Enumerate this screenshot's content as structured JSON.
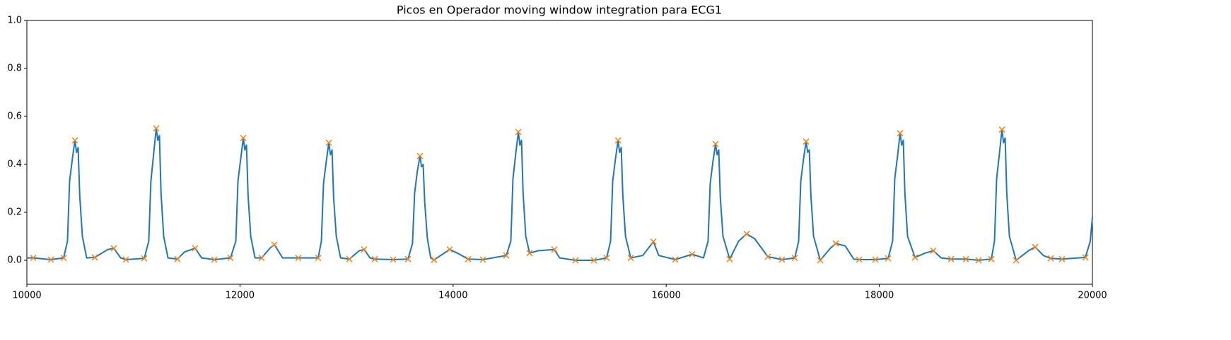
{
  "chart_data": {
    "type": "line",
    "title": "Picos en Operador moving window integration para ECG1",
    "xlim": [
      10000,
      20000
    ],
    "xticks": [
      10000,
      12000,
      14000,
      16000,
      18000,
      20000
    ],
    "ylim": [
      -0.1,
      1.0
    ],
    "yticks": [
      {
        "value": 0,
        "label": "0.0"
      },
      {
        "value": 0.2,
        "label": "0.2"
      },
      {
        "value": 0.4,
        "label": "0.4"
      },
      {
        "value": 0.6,
        "label": "0.6"
      },
      {
        "value": 0.8,
        "label": "0.8"
      },
      {
        "value": 1.0,
        "label": "1.0"
      }
    ],
    "series": [
      {
        "type": "line",
        "color": "#1f77b4",
        "x": [
          10000,
          10060,
          10226,
          10345,
          10381,
          10401,
          10426,
          10451,
          10466,
          10481,
          10496,
          10521,
          10561,
          10637,
          10760,
          10816,
          10880,
          10929,
          11102,
          11144,
          11164,
          11189,
          11214,
          11229,
          11244,
          11259,
          11284,
          11324,
          11413,
          11480,
          11579,
          11640,
          11759,
          11911,
          11961,
          11981,
          12006,
          12031,
          12046,
          12061,
          12076,
          12101,
          12141,
          12203,
          12280,
          12323,
          12400,
          12548,
          12734,
          12764,
          12784,
          12809,
          12834,
          12849,
          12864,
          12879,
          12904,
          12944,
          13026,
          13120,
          13165,
          13220,
          13265,
          13437,
          13577,
          13619,
          13639,
          13664,
          13689,
          13704,
          13719,
          13734,
          13759,
          13790,
          13822,
          13968,
          14040,
          14141,
          14280,
          14499,
          14542,
          14562,
          14587,
          14612,
          14627,
          14642,
          14657,
          14682,
          14718,
          14800,
          14950,
          15000,
          15149,
          15322,
          15441,
          15478,
          15498,
          15523,
          15548,
          15563,
          15578,
          15593,
          15618,
          15667,
          15780,
          15880,
          15930,
          16085,
          16244,
          16350,
          16393,
          16413,
          16438,
          16463,
          16478,
          16493,
          16508,
          16533,
          16596,
          16680,
          16755,
          16830,
          16954,
          17087,
          17207,
          17243,
          17263,
          17288,
          17313,
          17328,
          17343,
          17358,
          17383,
          17446,
          17540,
          17592,
          17680,
          17760,
          17811,
          17963,
          18083,
          18125,
          18145,
          18170,
          18195,
          18210,
          18225,
          18240,
          18265,
          18335,
          18430,
          18507,
          18580,
          18673,
          18813,
          18932,
          19051,
          19081,
          19101,
          19126,
          19151,
          19166,
          19181,
          19196,
          19221,
          19284,
          19400,
          19463,
          19540,
          19609,
          19715,
          19934,
          19980,
          20000
        ],
        "values": [
          0.01,
          0.01,
          0.003,
          0.01,
          0.08,
          0.33,
          0.42,
          0.5,
          0.45,
          0.47,
          0.27,
          0.1,
          0.01,
          0.012,
          0.045,
          0.05,
          0.01,
          0.003,
          0.008,
          0.08,
          0.33,
          0.44,
          0.55,
          0.5,
          0.52,
          0.28,
          0.1,
          0.01,
          0.005,
          0.035,
          0.05,
          0.01,
          0.003,
          0.01,
          0.08,
          0.33,
          0.42,
          0.51,
          0.46,
          0.48,
          0.27,
          0.1,
          0.01,
          0.01,
          0.05,
          0.065,
          0.01,
          0.01,
          0.01,
          0.08,
          0.32,
          0.41,
          0.49,
          0.44,
          0.46,
          0.26,
          0.1,
          0.01,
          0.005,
          0.04,
          0.045,
          0.01,
          0.005,
          0.003,
          0.005,
          0.07,
          0.28,
          0.37,
          0.435,
          0.39,
          0.4,
          0.24,
          0.09,
          0.01,
          0.002,
          0.045,
          0.03,
          0.005,
          0.003,
          0.02,
          0.08,
          0.34,
          0.44,
          0.535,
          0.48,
          0.5,
          0.28,
          0.1,
          0.03,
          0.04,
          0.045,
          0.01,
          0.0,
          0.0,
          0.01,
          0.08,
          0.33,
          0.42,
          0.5,
          0.45,
          0.47,
          0.27,
          0.1,
          0.01,
          0.02,
          0.078,
          0.02,
          0.003,
          0.025,
          0.01,
          0.08,
          0.32,
          0.41,
          0.485,
          0.44,
          0.46,
          0.26,
          0.1,
          0.005,
          0.08,
          0.11,
          0.09,
          0.015,
          0.003,
          0.01,
          0.08,
          0.33,
          0.42,
          0.495,
          0.45,
          0.46,
          0.27,
          0.1,
          0.0,
          0.05,
          0.07,
          0.06,
          0.005,
          0.003,
          0.003,
          0.008,
          0.08,
          0.34,
          0.43,
          0.53,
          0.48,
          0.5,
          0.28,
          0.1,
          0.012,
          0.03,
          0.04,
          0.01,
          0.005,
          0.005,
          0.0,
          0.005,
          0.08,
          0.34,
          0.44,
          0.545,
          0.49,
          0.51,
          0.28,
          0.1,
          0.0,
          0.04,
          0.055,
          0.02,
          0.008,
          0.005,
          0.012,
          0.08,
          0.18
        ]
      },
      {
        "type": "scatter",
        "marker": "x",
        "color": "#ff7f0e",
        "x": [
          10060,
          10226,
          10345,
          10451,
          10637,
          10816,
          10929,
          11102,
          11214,
          11413,
          11579,
          11759,
          11911,
          12031,
          12203,
          12323,
          12548,
          12734,
          12834,
          13026,
          13165,
          13265,
          13437,
          13577,
          13689,
          13822,
          13968,
          14141,
          14280,
          14499,
          14612,
          14718,
          14950,
          15149,
          15322,
          15441,
          15548,
          15667,
          15880,
          16085,
          16244,
          16463,
          16596,
          16755,
          16954,
          17087,
          17207,
          17313,
          17446,
          17592,
          17811,
          17963,
          18083,
          18195,
          18335,
          18507,
          18673,
          18813,
          18932,
          19051,
          19151,
          19284,
          19463,
          19609,
          19715,
          19934
        ],
        "values": [
          0.01,
          0.003,
          0.01,
          0.5,
          0.012,
          0.05,
          0.003,
          0.008,
          0.55,
          0.005,
          0.05,
          0.003,
          0.01,
          0.51,
          0.01,
          0.065,
          0.01,
          0.01,
          0.49,
          0.005,
          0.045,
          0.005,
          0.003,
          0.005,
          0.435,
          0.002,
          0.045,
          0.005,
          0.003,
          0.02,
          0.535,
          0.03,
          0.045,
          0.0,
          0.0,
          0.01,
          0.5,
          0.01,
          0.078,
          0.003,
          0.025,
          0.485,
          0.005,
          0.11,
          0.015,
          0.003,
          0.01,
          0.495,
          0.0,
          0.07,
          0.003,
          0.003,
          0.008,
          0.53,
          0.012,
          0.04,
          0.005,
          0.005,
          0.0,
          0.005,
          0.545,
          0.0,
          0.055,
          0.008,
          0.005,
          0.012
        ]
      }
    ]
  }
}
